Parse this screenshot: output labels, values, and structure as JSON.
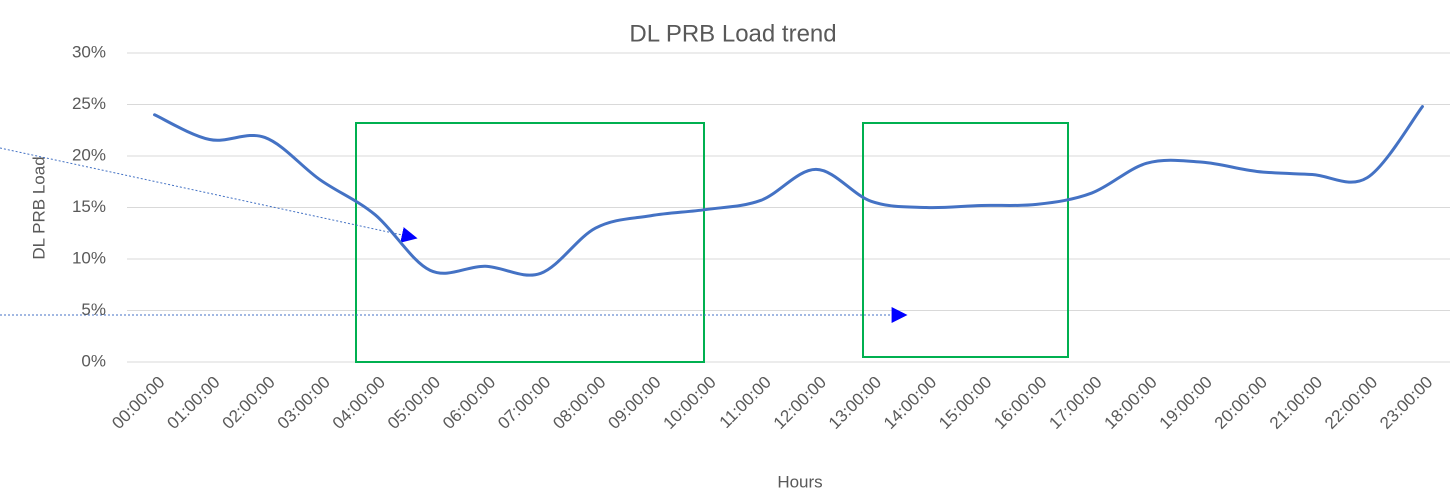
{
  "chart_data": {
    "type": "line",
    "title": "DL PRB Load trend",
    "x_label": "Hours",
    "y_label": "DL PRB Load",
    "categories": [
      "00:00:00",
      "01:00:00",
      "02:00:00",
      "03:00:00",
      "04:00:00",
      "05:00:00",
      "06:00:00",
      "07:00:00",
      "08:00:00",
      "09:00:00",
      "10:00:00",
      "11:00:00",
      "12:00:00",
      "13:00:00",
      "14:00:00",
      "15:00:00",
      "16:00:00",
      "17:00:00",
      "18:00:00",
      "19:00:00",
      "20:00:00",
      "21:00:00",
      "22:00:00",
      "23:00:00"
    ],
    "series": [
      {
        "name": "DL PRB Load",
        "color": "#4472c4",
        "values": [
          24.0,
          21.6,
          21.8,
          17.7,
          14.3,
          8.9,
          9.3,
          8.6,
          13.0,
          14.2,
          14.8,
          15.7,
          18.7,
          15.6,
          15.0,
          15.2,
          15.3,
          16.4,
          19.3,
          19.4,
          18.5,
          18.2,
          17.9,
          24.8
        ]
      }
    ],
    "ylim": [
      0,
      30
    ],
    "yticks": [
      {
        "value": 0,
        "label": "0%"
      },
      {
        "value": 5,
        "label": "5%"
      },
      {
        "value": 10,
        "label": "10%"
      },
      {
        "value": 15,
        "label": "15%"
      },
      {
        "value": 20,
        "label": "20%"
      },
      {
        "value": 25,
        "label": "25%"
      },
      {
        "value": 30,
        "label": "30%"
      }
    ],
    "grid": true,
    "smooth": true
  }
}
